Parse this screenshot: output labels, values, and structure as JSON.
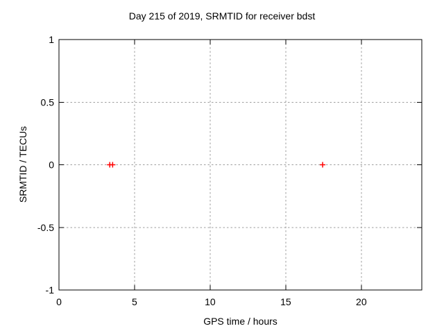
{
  "chart_data": {
    "type": "scatter",
    "title": "Day 215 of 2019, SRMTID for receiver bdst",
    "xlabel": "GPS time / hours",
    "ylabel": "SRMTID / TECUs",
    "xlim": [
      0,
      24
    ],
    "ylim": [
      -1,
      1
    ],
    "xticks": [
      0,
      5,
      10,
      15,
      20
    ],
    "xtick_labels": [
      "0",
      "5",
      "10",
      "15",
      "20"
    ],
    "yticks": [
      -1,
      -0.5,
      0,
      0.5,
      1
    ],
    "ytick_labels": [
      "-1",
      "-0.5",
      "0",
      "0.5",
      "1"
    ],
    "grid": true,
    "legend": false,
    "colors": {
      "marker": "#ff0000",
      "grid": "#9e9e9e",
      "axis": "#000000",
      "text": "#000000",
      "background": "#ffffff"
    },
    "series": [
      {
        "name": "SRMTID",
        "marker": "plus",
        "color": "#ff0000",
        "points": [
          [
            3.36,
            0
          ],
          [
            3.55,
            0
          ],
          [
            17.44,
            0
          ]
        ]
      }
    ]
  }
}
